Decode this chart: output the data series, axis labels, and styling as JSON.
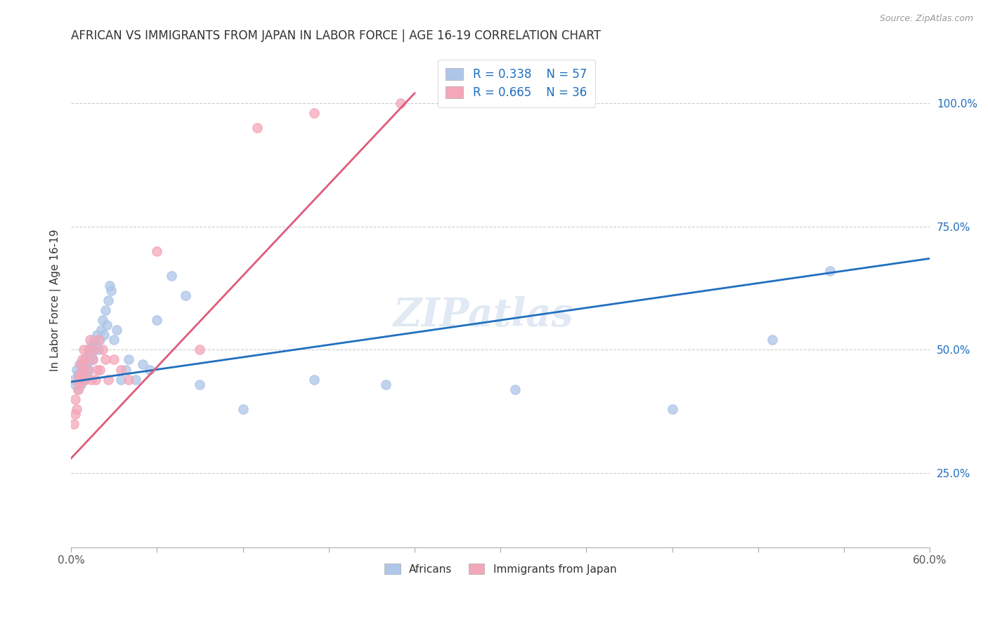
{
  "title": "AFRICAN VS IMMIGRANTS FROM JAPAN IN LABOR FORCE | AGE 16-19 CORRELATION CHART",
  "source": "Source: ZipAtlas.com",
  "ylabel": "In Labor Force | Age 16-19",
  "xlim": [
    0.0,
    0.6
  ],
  "ylim": [
    0.1,
    1.1
  ],
  "xticks": [
    0.0,
    0.06,
    0.12,
    0.18,
    0.24,
    0.3,
    0.36,
    0.42,
    0.48,
    0.54,
    0.6
  ],
  "xtick_labels": [
    "0.0%",
    "",
    "",
    "",
    "",
    "",
    "",
    "",
    "",
    "",
    "60.0%"
  ],
  "ytick_labels": [
    "25.0%",
    "50.0%",
    "75.0%",
    "100.0%"
  ],
  "yticks": [
    0.25,
    0.5,
    0.75,
    1.0
  ],
  "blue_color": "#aec6e8",
  "pink_color": "#f4a7b9",
  "blue_line_color": "#1f6fbf",
  "pink_line_color": "#e05a7a",
  "legend_r_blue": "0.338",
  "legend_n_blue": "57",
  "legend_r_pink": "0.665",
  "legend_n_pink": "36",
  "watermark": "ZIPatlas",
  "blue_scatter_x": [
    0.002,
    0.003,
    0.004,
    0.005,
    0.005,
    0.006,
    0.006,
    0.007,
    0.007,
    0.008,
    0.008,
    0.009,
    0.009,
    0.01,
    0.01,
    0.011,
    0.011,
    0.012,
    0.012,
    0.013,
    0.013,
    0.014,
    0.014,
    0.015,
    0.015,
    0.016,
    0.017,
    0.018,
    0.019,
    0.02,
    0.021,
    0.022,
    0.023,
    0.024,
    0.025,
    0.026,
    0.027,
    0.028,
    0.03,
    0.032,
    0.035,
    0.038,
    0.04,
    0.045,
    0.05,
    0.055,
    0.06,
    0.07,
    0.08,
    0.09,
    0.12,
    0.17,
    0.22,
    0.31,
    0.42,
    0.49,
    0.53
  ],
  "blue_scatter_y": [
    0.44,
    0.43,
    0.46,
    0.45,
    0.42,
    0.44,
    0.47,
    0.43,
    0.45,
    0.44,
    0.46,
    0.45,
    0.47,
    0.44,
    0.48,
    0.45,
    0.47,
    0.46,
    0.49,
    0.48,
    0.5,
    0.49,
    0.51,
    0.48,
    0.5,
    0.52,
    0.51,
    0.53,
    0.5,
    0.52,
    0.54,
    0.56,
    0.53,
    0.58,
    0.55,
    0.6,
    0.63,
    0.62,
    0.52,
    0.54,
    0.44,
    0.46,
    0.48,
    0.44,
    0.47,
    0.46,
    0.56,
    0.65,
    0.61,
    0.43,
    0.38,
    0.44,
    0.43,
    0.42,
    0.38,
    0.52,
    0.66
  ],
  "pink_scatter_x": [
    0.002,
    0.003,
    0.003,
    0.004,
    0.005,
    0.005,
    0.006,
    0.006,
    0.007,
    0.007,
    0.008,
    0.008,
    0.009,
    0.01,
    0.01,
    0.011,
    0.012,
    0.013,
    0.014,
    0.015,
    0.016,
    0.017,
    0.018,
    0.019,
    0.02,
    0.022,
    0.024,
    0.026,
    0.03,
    0.035,
    0.04,
    0.06,
    0.09,
    0.13,
    0.17,
    0.23
  ],
  "pink_scatter_y": [
    0.35,
    0.37,
    0.4,
    0.38,
    0.42,
    0.44,
    0.45,
    0.43,
    0.47,
    0.44,
    0.48,
    0.46,
    0.5,
    0.44,
    0.48,
    0.46,
    0.5,
    0.52,
    0.44,
    0.48,
    0.5,
    0.44,
    0.46,
    0.52,
    0.46,
    0.5,
    0.48,
    0.44,
    0.48,
    0.46,
    0.44,
    0.7,
    0.5,
    0.95,
    0.98,
    1.0
  ],
  "blue_line_x0": 0.0,
  "blue_line_y0": 0.435,
  "blue_line_x1": 0.6,
  "blue_line_y1": 0.685,
  "pink_line_x0": 0.0,
  "pink_line_y0": 0.28,
  "pink_line_x1": 0.24,
  "pink_line_y1": 1.02
}
